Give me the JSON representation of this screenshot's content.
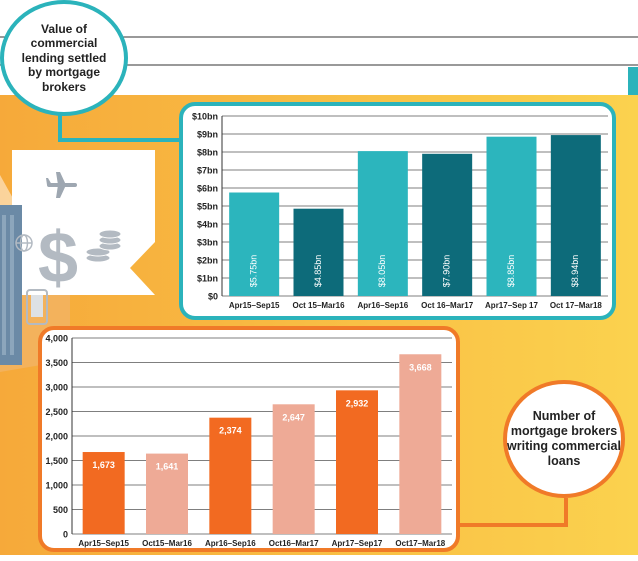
{
  "callouts": {
    "top": "Value of\ncommercial\nlending settled\nby mortgage\nbrokers",
    "bottom": "Number of\nmortgage brokers\nwriting commercial\nloans"
  },
  "colors": {
    "teal_light": "#2cb5bd",
    "teal_dark": "#0d6b7a",
    "orange": "#f26a21",
    "salmon": "#eeaa96",
    "teal_border": "#2bb3bb",
    "orange_border": "#f07a28",
    "yellow_bg": "#f9be3f"
  },
  "icons": [
    "airplane-icon",
    "dollar-sign-icon",
    "coin-stack-icon",
    "globe-icon",
    "smartphone-icon",
    "building-icon"
  ],
  "chart_data": [
    {
      "type": "bar",
      "categories": [
        "Apr15–Sep15",
        "Oct 15–Mar16",
        "Apr16–Sep16",
        "Oct 16–Mar17",
        "Apr17–Sep 17",
        "Oct 17–Mar18"
      ],
      "values": [
        5.75,
        4.85,
        8.05,
        7.9,
        8.85,
        8.94
      ],
      "data_labels": [
        "$5.75bn",
        "$4.85bn",
        "$8.05bn",
        "$7.90bn",
        "$8.85bn",
        "$8.94bn"
      ],
      "yticks": [
        "$0",
        "$1bn",
        "$2bn",
        "$3bn",
        "$4bn",
        "$5bn",
        "$6bn",
        "$7bn",
        "$8bn",
        "$9bn",
        "$10bn"
      ],
      "ylim": [
        0,
        10
      ],
      "grid": true
    },
    {
      "type": "bar",
      "categories": [
        "Apr15–Sep15",
        "Oct15–Mar16",
        "Apr16–Sep16",
        "Oct16–Mar17",
        "Apr17–Sep17",
        "Oct17–Mar18"
      ],
      "values": [
        1673,
        1641,
        2374,
        2647,
        2932,
        3668
      ],
      "data_labels": [
        "1,673",
        "1,641",
        "2,374",
        "2,647",
        "2,932",
        "3,668"
      ],
      "yticks": [
        "0",
        "500",
        "1,000",
        "1,500",
        "2,000",
        "2,500",
        "3,000",
        "3,500",
        "4,000"
      ],
      "ylim": [
        0,
        4000
      ],
      "grid": true
    }
  ]
}
